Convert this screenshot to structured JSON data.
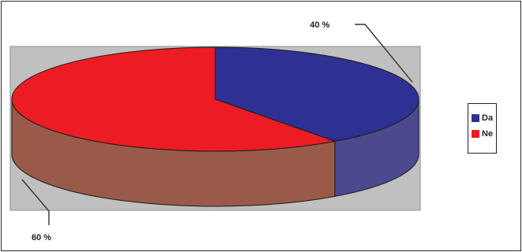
{
  "chart_data": {
    "type": "pie",
    "categories": [
      "Da",
      "Ne"
    ],
    "values": [
      40,
      60
    ],
    "value_labels": [
      "40 %",
      "60 %"
    ],
    "colors": [
      "#2e3192",
      "#ed1c24"
    ],
    "side_colors": [
      "#4b4a8f",
      "#9a5a4a"
    ],
    "plot_background": "#c0c0c0",
    "legend_position": "right",
    "three_d": true,
    "legend": [
      "Da",
      "Ne"
    ]
  }
}
